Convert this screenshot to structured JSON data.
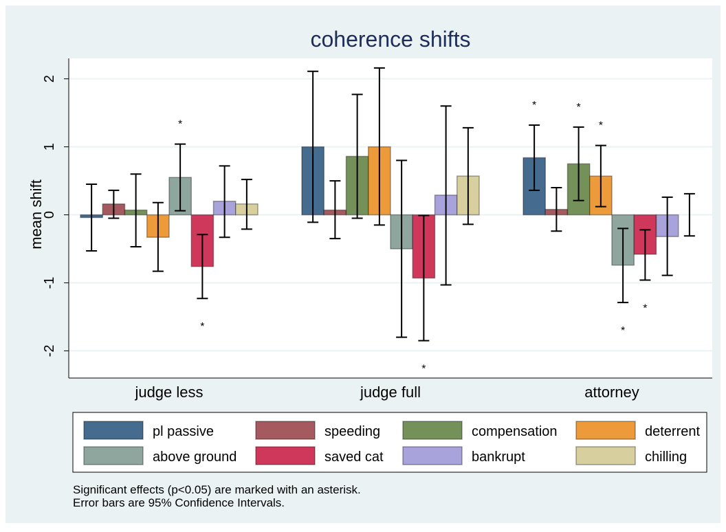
{
  "chart_data": {
    "type": "bar",
    "title": "coherence shifts",
    "y_label": "mean shift",
    "categories": [
      "judge less",
      "judge full",
      "attorney"
    ],
    "ylim": [
      -2.4,
      2.3
    ],
    "yticks": [
      -2,
      -1,
      0,
      1,
      2
    ],
    "grid": true,
    "marker": "*",
    "series": [
      {
        "name": "pl passive",
        "color": "#456b8e",
        "values": [
          -0.04,
          1.0,
          0.84
        ],
        "ci": [
          [
            -0.53,
            0.45
          ],
          [
            -0.11,
            2.11
          ],
          [
            0.36,
            1.32
          ]
        ],
        "significant": [
          false,
          false,
          true
        ]
      },
      {
        "name": "speeding",
        "color": "#a45a5e",
        "values": [
          0.16,
          0.07,
          0.08
        ],
        "ci": [
          [
            -0.05,
            0.36
          ],
          [
            -0.35,
            0.5
          ],
          [
            -0.24,
            0.4
          ]
        ],
        "significant": [
          false,
          false,
          false
        ]
      },
      {
        "name": "compensation",
        "color": "#75915a",
        "values": [
          0.07,
          0.86,
          0.75
        ],
        "ci": [
          [
            -0.47,
            0.6
          ],
          [
            -0.05,
            1.77
          ],
          [
            0.21,
            1.29
          ]
        ],
        "significant": [
          false,
          false,
          true
        ]
      },
      {
        "name": "deterrent",
        "color": "#ed9a3a",
        "values": [
          -0.33,
          1.0,
          0.57
        ],
        "ci": [
          [
            -0.83,
            0.18
          ],
          [
            -0.15,
            2.16
          ],
          [
            0.12,
            1.02
          ]
        ],
        "significant": [
          false,
          false,
          true
        ]
      },
      {
        "name": "above ground",
        "color": "#8fa69f",
        "values": [
          0.55,
          -0.5,
          -0.74
        ],
        "ci": [
          [
            0.06,
            1.04
          ],
          [
            -1.8,
            0.8
          ],
          [
            -1.29,
            -0.2
          ]
        ],
        "significant": [
          true,
          false,
          true
        ]
      },
      {
        "name": "saved cat",
        "color": "#cf375b",
        "values": [
          -0.76,
          -0.93,
          -0.58
        ],
        "ci": [
          [
            -1.23,
            -0.29
          ],
          [
            -1.85,
            -0.01
          ],
          [
            -0.96,
            -0.22
          ]
        ],
        "significant": [
          true,
          true,
          true
        ]
      },
      {
        "name": "bankrupt",
        "color": "#a9a3dc",
        "values": [
          0.2,
          0.29,
          -0.32
        ],
        "ci": [
          [
            -0.33,
            0.72
          ],
          [
            -1.03,
            1.6
          ],
          [
            -0.89,
            0.26
          ]
        ],
        "significant": [
          false,
          false,
          false
        ]
      },
      {
        "name": "chilling",
        "color": "#d7d09e",
        "values": [
          0.16,
          0.57,
          0.0
        ],
        "ci": [
          [
            -0.21,
            0.52
          ],
          [
            -0.14,
            1.28
          ],
          [
            -0.31,
            0.31
          ]
        ],
        "significant": [
          false,
          false,
          false
        ]
      }
    ],
    "notes": [
      "Significant effects (p<0.05) are marked with an asterisk.",
      "Error bars are 95% Confidence Intervals."
    ]
  }
}
